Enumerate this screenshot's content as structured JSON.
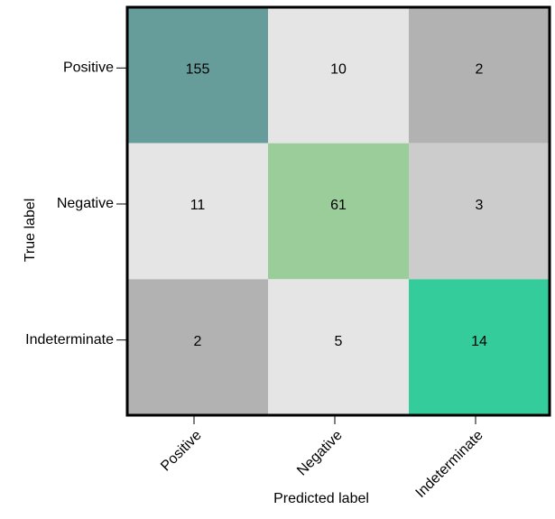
{
  "chart_data": {
    "type": "heatmap",
    "title": "",
    "xlabel": "Predicted label",
    "ylabel": "True label",
    "x_categories": [
      "Positive",
      "Negative",
      "Indeterminate"
    ],
    "y_categories": [
      "Positive",
      "Negative",
      "Indeterminate"
    ],
    "values": [
      [
        155,
        10,
        2
      ],
      [
        11,
        61,
        3
      ],
      [
        2,
        5,
        14
      ]
    ],
    "cell_colors": [
      [
        "#669d9b",
        "#e5e5e5",
        "#b2b2b2"
      ],
      [
        "#e5e5e5",
        "#9bcd9b",
        "#cccccc"
      ],
      [
        "#b2b2b2",
        "#e5e5e5",
        "#35cc9b"
      ]
    ],
    "frame_color": "#000000",
    "grid": false,
    "legend": "none"
  }
}
